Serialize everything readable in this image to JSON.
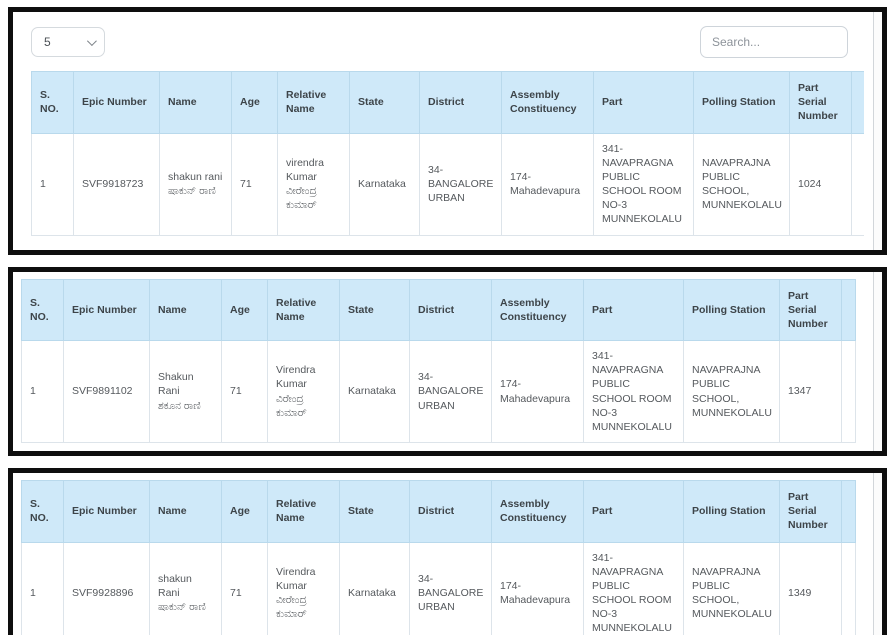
{
  "colors": {
    "panel_border": "#0e0e0e",
    "table_header_bg": "#cfe9f9",
    "table_header_border": "#b9d9ec",
    "table_cell_border": "#dde4ea",
    "header_text": "#3d4449",
    "body_text": "#55595d"
  },
  "controls": {
    "page_size_value": "5",
    "search_placeholder": "Search..."
  },
  "table": {
    "columns": [
      "S. NO.",
      "Epic Number",
      "Name",
      "Age",
      "Relative Name",
      "State",
      "District",
      "Assembly Constituency",
      "Part",
      "Polling Station",
      "Part Serial Number"
    ]
  },
  "panels": [
    {
      "rows": [
        {
          "cells": [
            "1",
            "SVF9918723",
            "shakun rani\nಷಾಕುನ್ ರಾಣಿ",
            "71",
            "virendra Kumar\nವೀರೇಂದ್ರ ಕುಮಾರ್",
            "Karnataka",
            "34-BANGALORE URBAN",
            "174-Mahadevapura",
            "341-NAVAPRAGNA PUBLIC SCHOOL ROOM NO-3 MUNNEKOLALU",
            "NAVAPRAJNA PUBLIC SCHOOL, MUNNEKOLALU",
            "1024"
          ]
        }
      ]
    },
    {
      "rows": [
        {
          "cells": [
            "1",
            "SVF9891102",
            "Shakun Rani\nಶಕೂನ ರಾಣಿ",
            "71",
            "Virendra Kumar\nವಿರೇಂದ್ರ ಕುಮಾರ್",
            "Karnataka",
            "34-BANGALORE URBAN",
            "174-Mahadevapura",
            "341-NAVAPRAGNA PUBLIC SCHOOL ROOM NO-3 MUNNEKOLALU",
            "NAVAPRAJNA PUBLIC SCHOOL, MUNNEKOLALU",
            "1347"
          ]
        }
      ]
    },
    {
      "rows": [
        {
          "cells": [
            "1",
            "SVF9928896",
            "shakun Rani\nಷಾಕುನ್ ರಾಣಿ",
            "71",
            "Virendra Kumar\nವೀರೇಂದ್ರ ಕುಮಾರ್",
            "Karnataka",
            "34-BANGALORE URBAN",
            "174-Mahadevapura",
            "341-NAVAPRAGNA PUBLIC SCHOOL ROOM NO-3 MUNNEKOLALU",
            "NAVAPRAJNA PUBLIC SCHOOL, MUNNEKOLALU",
            "1349"
          ]
        }
      ]
    }
  ]
}
